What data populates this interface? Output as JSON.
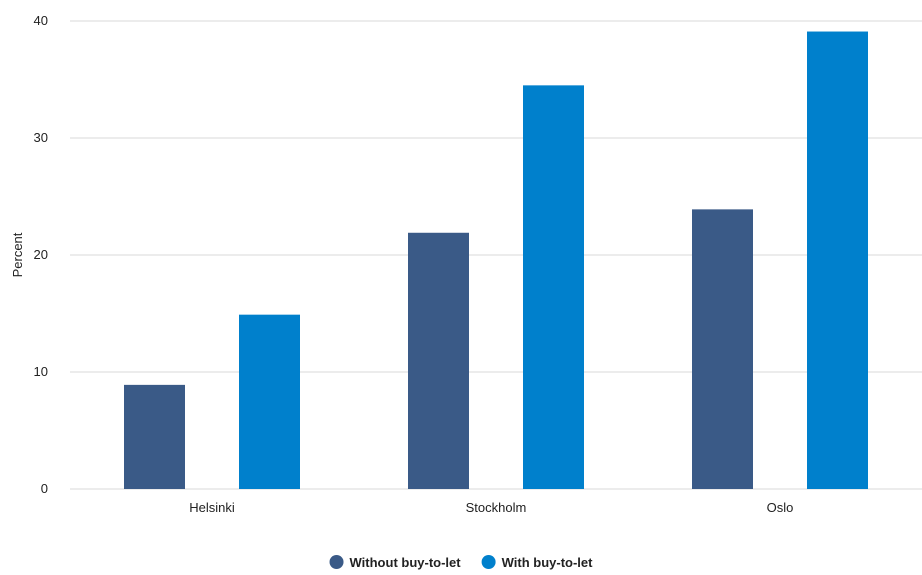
{
  "chart_data": {
    "type": "bar",
    "title": "",
    "xlabel": "",
    "ylabel": "Percent",
    "ylim": [
      0,
      40
    ],
    "yticks": [
      0,
      10,
      20,
      30,
      40
    ],
    "grid": true,
    "legend_position": "bottom-center",
    "categories": [
      "Helsinki",
      "Stockholm",
      "Oslo"
    ],
    "series": [
      {
        "name": "Without buy-to-let",
        "color": "#3a5a87",
        "values": [
          8.9,
          21.9,
          23.9
        ]
      },
      {
        "name": "With buy-to-let",
        "color": "#0080cc",
        "values": [
          14.9,
          34.5,
          39.1
        ]
      }
    ]
  }
}
